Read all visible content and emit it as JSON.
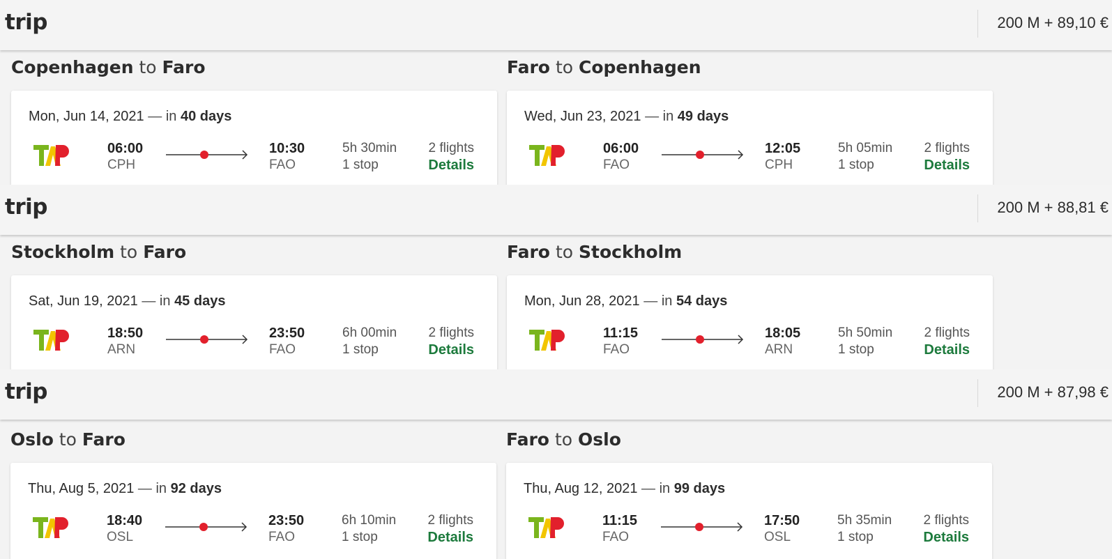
{
  "trips": [
    {
      "title": "trip",
      "price": "200 M + 89,10 €",
      "legs": [
        {
          "from": "Copenhagen",
          "to_word": "to",
          "to": "Faro",
          "date": "Mon, Jun 14, 2021",
          "dash": "—",
          "in": "in",
          "days": "40 days",
          "dep_time": "06:00",
          "dep_code": "CPH",
          "arr_time": "10:30",
          "arr_code": "FAO",
          "duration": "5h 30min",
          "stops": "1 stop",
          "flights": "2 flights",
          "details": "Details"
        },
        {
          "from": "Faro",
          "to_word": "to",
          "to": "Copenhagen",
          "date": "Wed, Jun 23, 2021",
          "dash": "—",
          "in": "in",
          "days": "49 days",
          "dep_time": "06:00",
          "dep_code": "FAO",
          "arr_time": "12:05",
          "arr_code": "CPH",
          "duration": "5h 05min",
          "stops": "1 stop",
          "flights": "2 flights",
          "details": "Details"
        }
      ]
    },
    {
      "title": "trip",
      "price": "200 M + 88,81 €",
      "legs": [
        {
          "from": "Stockholm",
          "to_word": "to",
          "to": "Faro",
          "date": "Sat, Jun 19, 2021",
          "dash": "—",
          "in": "in",
          "days": "45 days",
          "dep_time": "18:50",
          "dep_code": "ARN",
          "arr_time": "23:50",
          "arr_code": "FAO",
          "duration": "6h 00min",
          "stops": "1 stop",
          "flights": "2 flights",
          "details": "Details"
        },
        {
          "from": "Faro",
          "to_word": "to",
          "to": "Stockholm",
          "date": "Mon, Jun 28, 2021",
          "dash": "—",
          "in": "in",
          "days": "54 days",
          "dep_time": "11:15",
          "dep_code": "FAO",
          "arr_time": "18:05",
          "arr_code": "ARN",
          "duration": "5h 50min",
          "stops": "1 stop",
          "flights": "2 flights",
          "details": "Details"
        }
      ]
    },
    {
      "title": "trip",
      "price": "200 M + 87,98 €",
      "legs": [
        {
          "from": "Oslo",
          "to_word": "to",
          "to": "Faro",
          "date": "Thu, Aug 5, 2021",
          "dash": "—",
          "in": "in",
          "days": "92 days",
          "dep_time": "18:40",
          "dep_code": "OSL",
          "arr_time": "23:50",
          "arr_code": "FAO",
          "duration": "6h 10min",
          "stops": "1 stop",
          "flights": "2 flights",
          "details": "Details"
        },
        {
          "from": "Faro",
          "to_word": "to",
          "to": "Oslo",
          "date": "Thu, Aug 12, 2021",
          "dash": "—",
          "in": "in",
          "days": "99 days",
          "dep_time": "11:15",
          "dep_code": "FAO",
          "arr_time": "17:50",
          "arr_code": "OSL",
          "duration": "5h 35min",
          "stops": "1 stop",
          "flights": "2 flights",
          "details": "Details"
        }
      ]
    }
  ],
  "airline_logo": {
    "icon": "tap-airline-logo",
    "colors": {
      "green": "#7ab51d",
      "yellow": "#f2c500",
      "red": "#e2202c"
    }
  },
  "colors": {
    "details_link": "#1c7a3c",
    "stop_dot": "#e2202c"
  }
}
